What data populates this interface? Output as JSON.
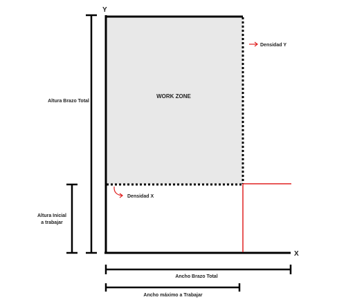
{
  "labels": {
    "y_axis": "Y",
    "x_axis": "X",
    "work_zone": "WORK ZONE",
    "density_y": "Densidad Y",
    "density_x": "Densidad X",
    "total_height": "Altura Brazo Total",
    "initial_height_line1": "Altura Inicial",
    "initial_height_line2": "a trabajar",
    "total_width": "Ancho Brazo Total",
    "max_work_width": "Ancho máximo a Trabajar"
  },
  "colors": {
    "line": "#000000",
    "zone_fill": "#e8e8e8",
    "accent": "#e02020"
  }
}
